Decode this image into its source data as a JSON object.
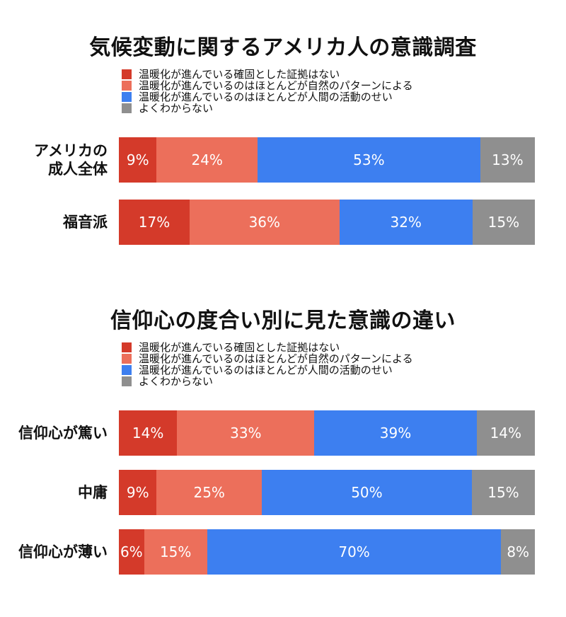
{
  "chart_data": [
    {
      "type": "bar",
      "stacked": true,
      "orientation": "horizontal",
      "percent": true,
      "title": "気候変動に関するアメリカ人の意識調査",
      "categories": [
        "アメリカの\n成人全体",
        "福音派"
      ],
      "series": [
        {
          "name": "温暖化が進んでいる確固とした証拠はない",
          "color": "#d43a2a",
          "values": [
            9,
            17
          ],
          "labels": [
            "9%",
            "17%"
          ]
        },
        {
          "name": "温暖化が進んでいるのはほとんどが自然のパターンによる",
          "color": "#ec6f5b",
          "values": [
            24,
            36
          ],
          "labels": [
            "24%",
            "36%"
          ]
        },
        {
          "name": "温暖化が進んでいるのはほとんどが人間の活動のせい",
          "color": "#3d7ff0",
          "values": [
            53,
            32
          ],
          "labels": [
            "53%",
            "32%"
          ]
        },
        {
          "name": "よくわからない",
          "color": "#8f8f8f",
          "values": [
            13,
            15
          ],
          "labels": [
            "13%",
            "15%"
          ]
        }
      ]
    },
    {
      "type": "bar",
      "stacked": true,
      "orientation": "horizontal",
      "percent": true,
      "title": "信仰心の度合い別に見た意識の違い",
      "categories": [
        "信仰心が篤い",
        "中庸",
        "信仰心が薄い"
      ],
      "series": [
        {
          "name": "温暖化が進んでいる確固とした証拠はない",
          "color": "#d43a2a",
          "values": [
            14,
            9,
            6
          ],
          "labels": [
            "14%",
            "9%",
            "6%"
          ]
        },
        {
          "name": "温暖化が進んでいるのはほとんどが自然のパターンによる",
          "color": "#ec6f5b",
          "values": [
            33,
            25,
            15
          ],
          "labels": [
            "33%",
            "25%",
            "15%"
          ]
        },
        {
          "name": "温暖化が進んでいるのはほとんどが人間の活動のせい",
          "color": "#3d7ff0",
          "values": [
            39,
            50,
            70
          ],
          "labels": [
            "39%",
            "50%",
            "70%"
          ]
        },
        {
          "name": "よくわからない",
          "color": "#8f8f8f",
          "values": [
            14,
            15,
            8
          ],
          "labels": [
            "14%",
            "15%",
            "8%"
          ]
        }
      ]
    }
  ]
}
